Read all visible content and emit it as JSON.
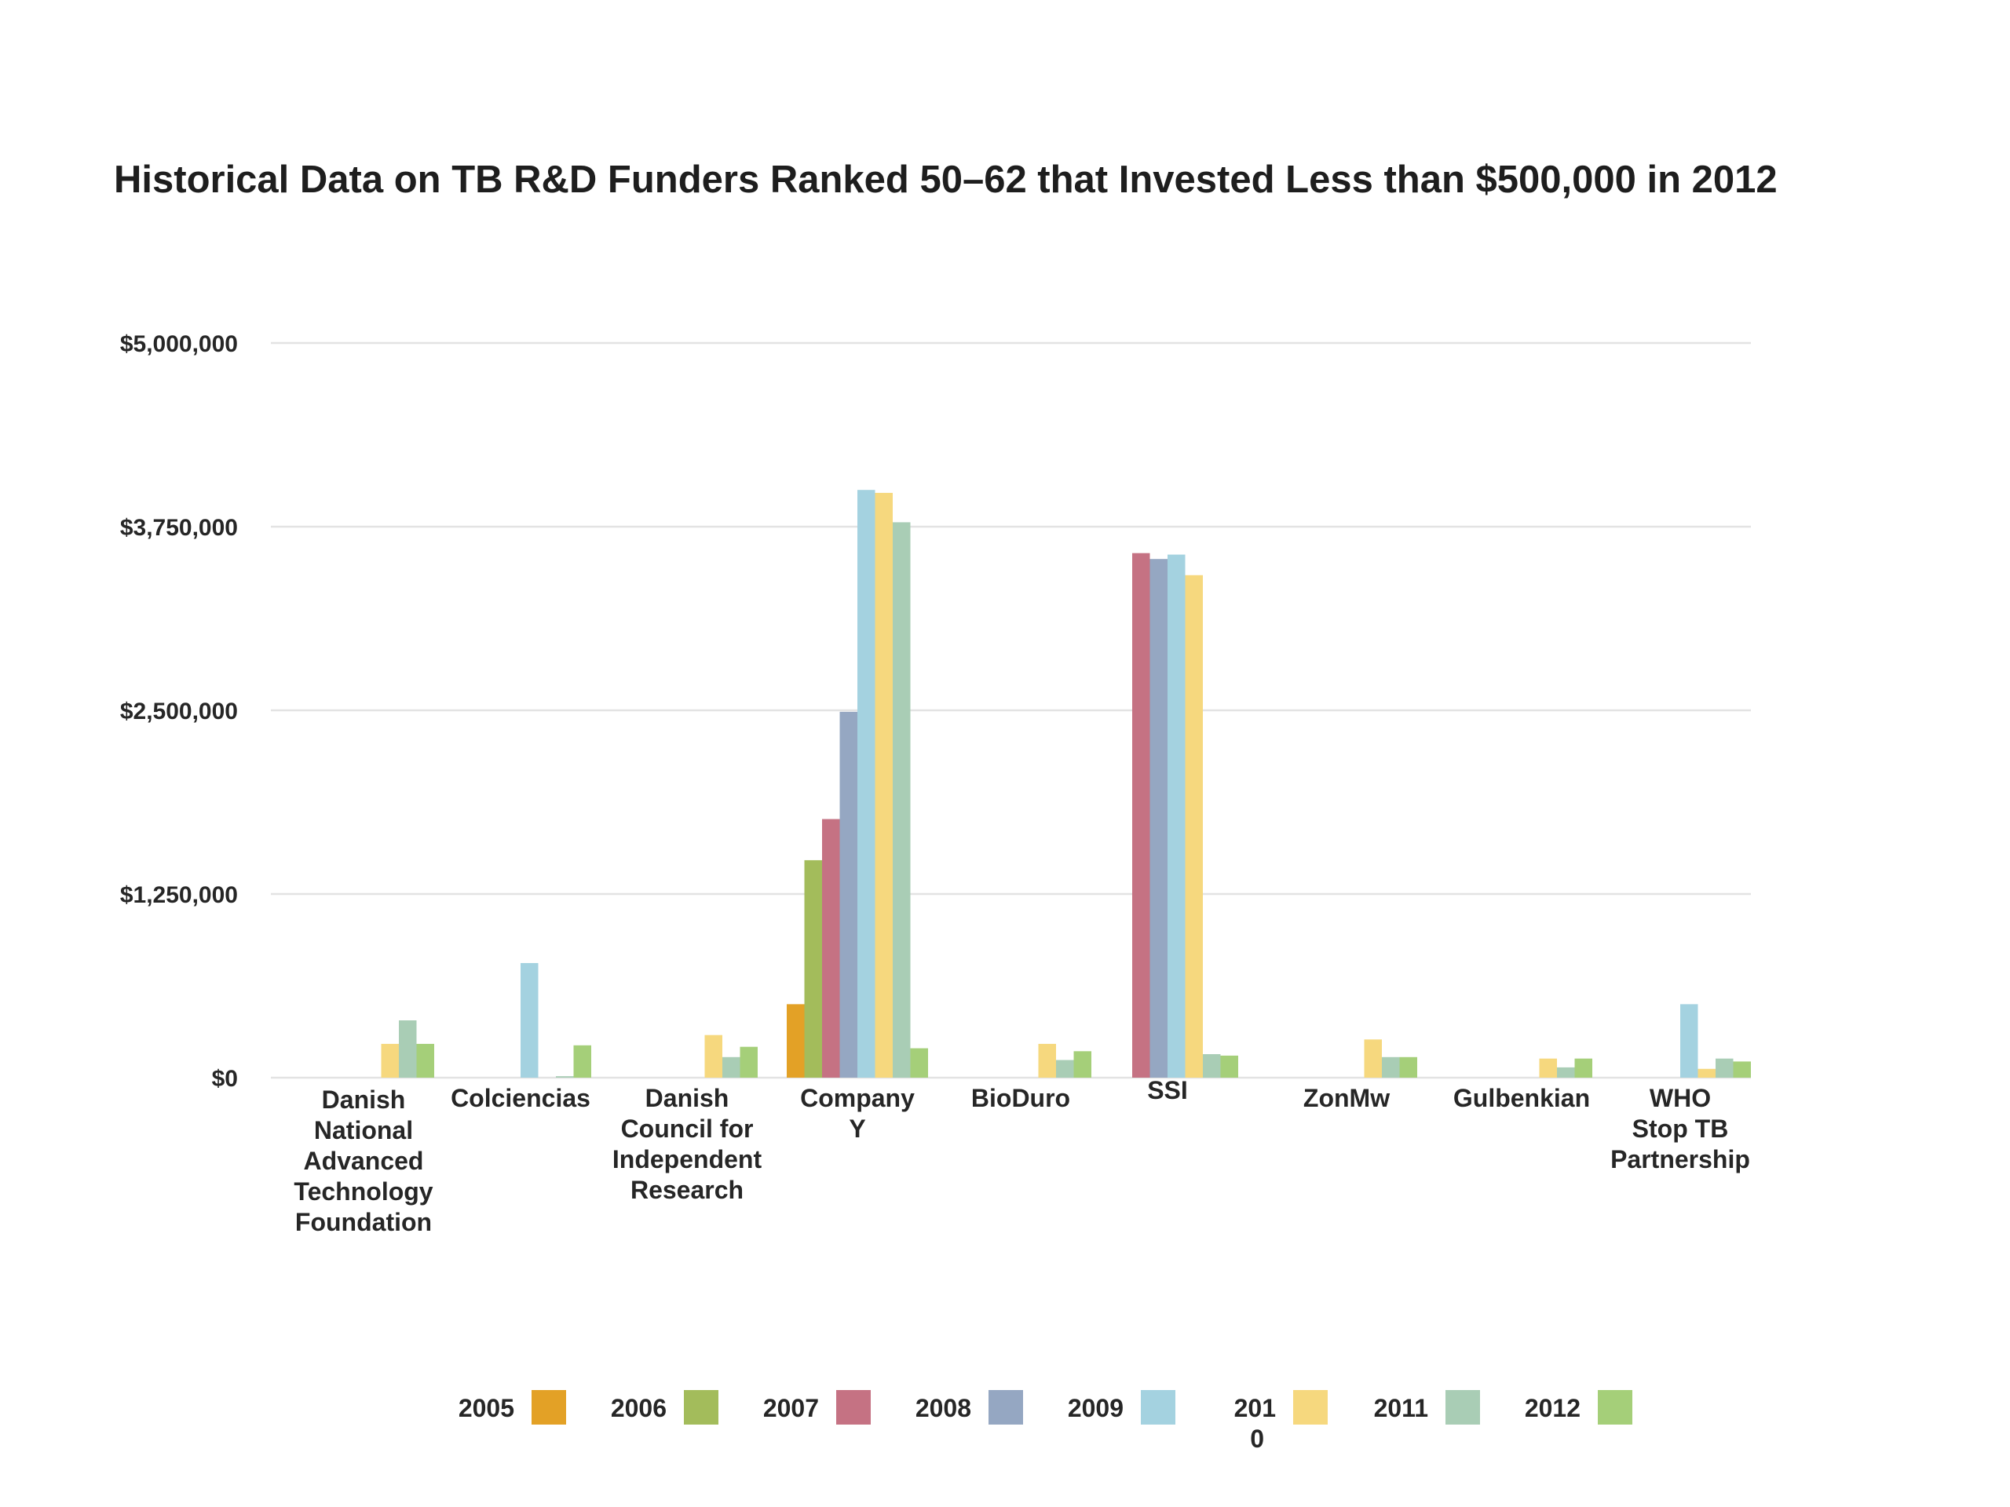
{
  "chart_data": {
    "type": "bar",
    "title": "Historical Data on TB R&D Funders Ranked 50–62 that Invested Less than $500,000 in 2012",
    "xlabel": "",
    "ylabel": "",
    "ylim": [
      0,
      5000000
    ],
    "y_ticks": [
      {
        "value": 0,
        "label": "$0"
      },
      {
        "value": 1250000,
        "label": "$1,250,000"
      },
      {
        "value": 2500000,
        "label": "$2,500,000"
      },
      {
        "value": 3750000,
        "label": "$3,750,000"
      },
      {
        "value": 5000000,
        "label": "$5,000,000"
      }
    ],
    "grid": true,
    "legend_position": "bottom",
    "categories": [
      [
        "Danish",
        "National",
        "Advanced",
        "Technology",
        "Foundation"
      ],
      [
        "Colciencias"
      ],
      [
        "Danish",
        "Council for",
        "Independent",
        "Research"
      ],
      [
        "Company",
        "Y"
      ],
      [
        "BioDuro"
      ],
      [
        "SSI"
      ],
      [
        "ZonMw"
      ],
      [
        "Gulbenkian"
      ],
      [
        "WHO",
        "Stop TB",
        "Partnership"
      ]
    ],
    "series": [
      {
        "name": "2005",
        "color": "#E3A126",
        "values": [
          0,
          0,
          0,
          500000,
          0,
          0,
          0,
          0,
          0
        ]
      },
      {
        "name": "2006",
        "color": "#A3BC5B",
        "values": [
          0,
          0,
          0,
          1480000,
          0,
          0,
          0,
          0,
          0
        ]
      },
      {
        "name": "2007",
        "color": "#C57283",
        "values": [
          0,
          0,
          0,
          1760000,
          0,
          3570000,
          0,
          0,
          0
        ]
      },
      {
        "name": "2008",
        "color": "#95A7C2",
        "values": [
          0,
          0,
          0,
          2490000,
          0,
          3530000,
          0,
          0,
          0
        ]
      },
      {
        "name": "2009",
        "color": "#A4D2E0",
        "values": [
          0,
          780000,
          0,
          4000000,
          0,
          3560000,
          0,
          0,
          500000
        ]
      },
      {
        "name": "201\n0",
        "color": "#F6D87E",
        "values": [
          230000,
          0,
          290000,
          3980000,
          230000,
          3420000,
          260000,
          130000,
          60000
        ]
      },
      {
        "name": "2011",
        "color": "#A9CDB5",
        "values": [
          390000,
          10000,
          140000,
          3780000,
          120000,
          160000,
          140000,
          70000,
          130000
        ]
      },
      {
        "name": "2012",
        "color": "#A5CF79",
        "values": [
          230000,
          220000,
          210000,
          200000,
          180000,
          150000,
          140000,
          130000,
          110000
        ]
      }
    ]
  }
}
